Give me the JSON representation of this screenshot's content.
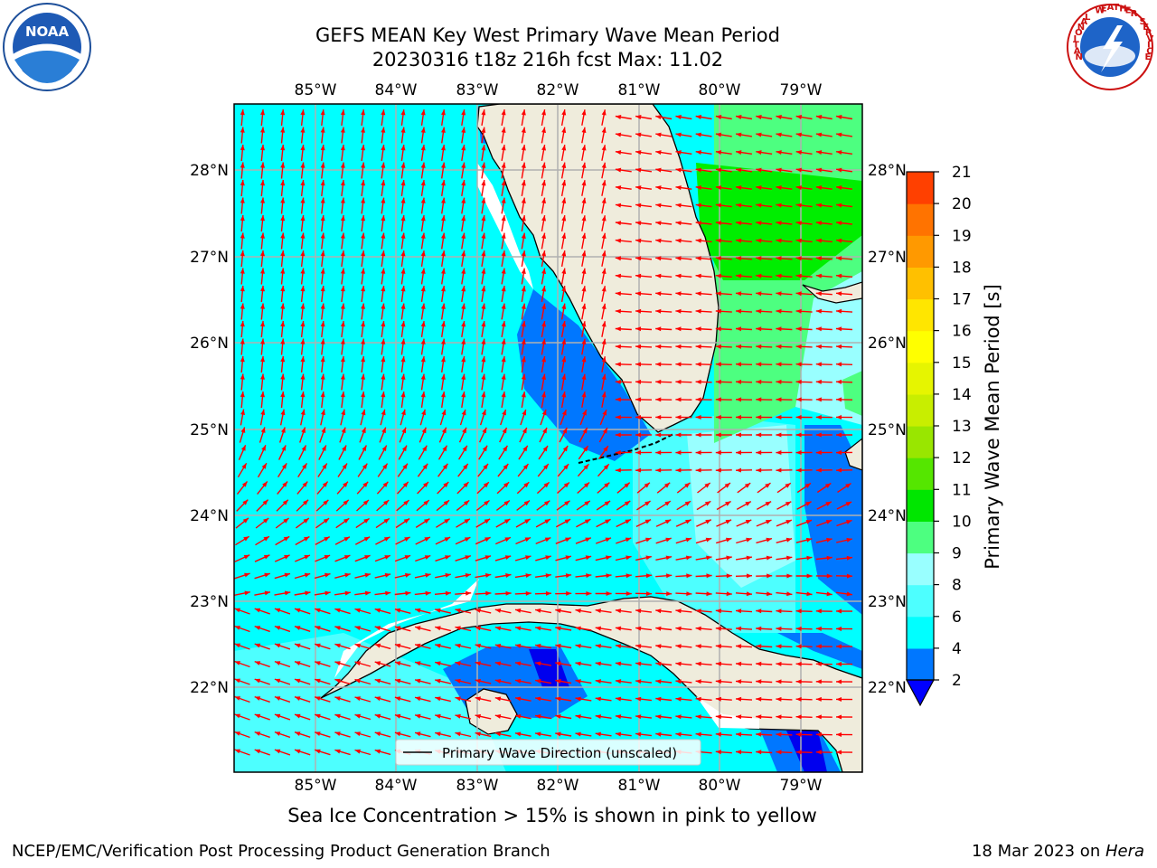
{
  "title": {
    "line1": "GEFS MEAN Key West Primary Wave Mean Period",
    "line2": "20230316 t18z 216h fcst   Max: 11.02"
  },
  "map": {
    "lon_labels": [
      "85°W",
      "84°W",
      "83°W",
      "82°W",
      "81°W",
      "80°W",
      "79°W"
    ],
    "lat_labels": [
      "28°N",
      "27°N",
      "26°N",
      "25°N",
      "24°N",
      "23°N",
      "22°N"
    ],
    "legend_label": "Primary Wave Direction (unscaled)",
    "land_color": "#efecdc",
    "arrow_color": "#ff0000",
    "grid_color": "#b0b0b0"
  },
  "colorbar": {
    "label": "Primary Wave Mean Period [s]",
    "ticks": [
      "2",
      "4",
      "6",
      "8",
      "9",
      "10",
      "11",
      "12",
      "13",
      "14",
      "15",
      "16",
      "17",
      "18",
      "19",
      "20",
      "21"
    ],
    "colors": [
      "#0077ff",
      "#00ffff",
      "#4dffff",
      "#99ffff",
      "#4dff80",
      "#00e600",
      "#55e600",
      "#99e600",
      "#c8ee00",
      "#e6f500",
      "#ffff00",
      "#ffe600",
      "#ffc000",
      "#ff9900",
      "#ff7300",
      "#ff4000"
    ],
    "top_color": "#ff0000",
    "under_color": "#0000ff"
  },
  "note": "Sea Ice Concentration > 15% is shown in pink to yellow",
  "footer": {
    "left": "NCEP/EMC/Verification Post Processing Product Generation Branch",
    "date": "18 Mar 2023 on ",
    "host": "Hera"
  },
  "logos": {
    "noaa": "NOAA",
    "nws": "NATIONAL WEATHER SERVICE"
  }
}
